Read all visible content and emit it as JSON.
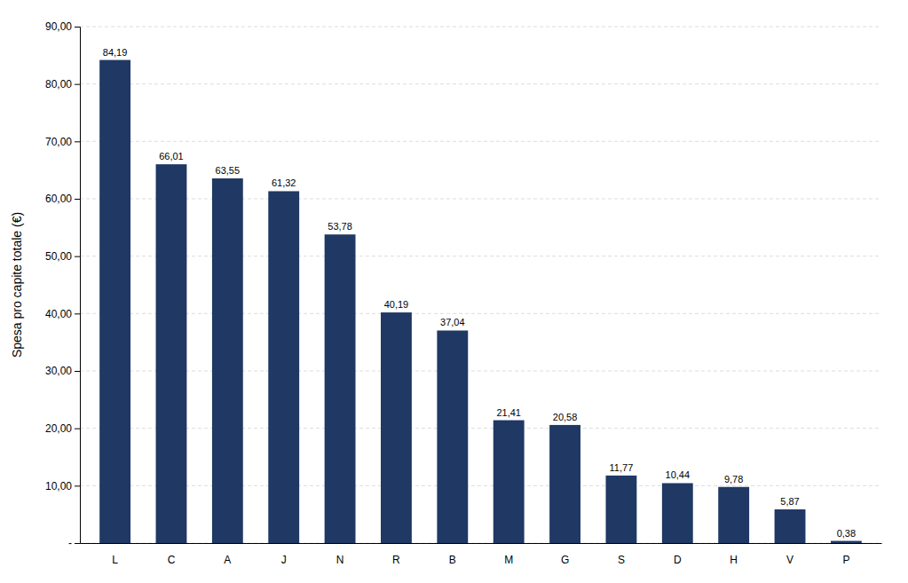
{
  "chart_data": {
    "type": "bar",
    "ylabel": "Spesa pro capite totale (€)",
    "categories": [
      "L",
      "C",
      "A",
      "J",
      "N",
      "R",
      "B",
      "M",
      "G",
      "S",
      "D",
      "H",
      "V",
      "P"
    ],
    "values": [
      84.19,
      66.01,
      63.55,
      61.32,
      53.78,
      40.19,
      37.04,
      21.41,
      20.58,
      11.77,
      10.44,
      9.78,
      5.87,
      0.38
    ],
    "value_labels": [
      "84,19",
      "66,01",
      "63,55",
      "61,32",
      "53,78",
      "40,19",
      "37,04",
      "21,41",
      "20,58",
      "11,77",
      "10,44",
      "9,78",
      "5,87",
      "0,38"
    ],
    "data_labels": true,
    "color": "#1F3864",
    "ylim": [
      0,
      90
    ],
    "yticks": [
      {
        "value": 0,
        "label": "-"
      },
      {
        "value": 10,
        "label": "10,00"
      },
      {
        "value": 20,
        "label": "20,00"
      },
      {
        "value": 30,
        "label": "30,00"
      },
      {
        "value": 40,
        "label": "40,00"
      },
      {
        "value": 50,
        "label": "50,00"
      },
      {
        "value": 60,
        "label": "60,00"
      },
      {
        "value": 70,
        "label": "70,00"
      },
      {
        "value": 80,
        "label": "80,00"
      },
      {
        "value": 90,
        "label": "90,00"
      }
    ],
    "grid": true
  }
}
